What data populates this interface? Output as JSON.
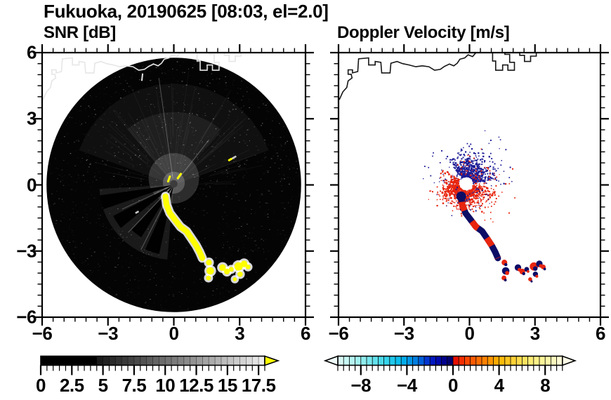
{
  "figure": {
    "title": "Fukuoka, 20190625 [08:03, el=2.0]"
  },
  "panels": {
    "left": {
      "title": "SNR [dB]"
    },
    "right": {
      "title": "Doppler Velocity [m/s]"
    }
  },
  "coastline": {
    "color_left": "#e6e6e6",
    "color_right": "#161616",
    "main": [
      [
        -6.2,
        3.62
      ],
      [
        -5.95,
        3.9
      ],
      [
        -5.8,
        4.22
      ],
      [
        -5.62,
        4.42
      ],
      [
        -5.56,
        4.72
      ],
      [
        -5.38,
        4.85
      ],
      [
        -5.42,
        5.02
      ],
      [
        -5.56,
        5.02
      ],
      [
        -5.56,
        5.22
      ],
      [
        -5.36,
        5.22
      ],
      [
        -5.36,
        5.08
      ],
      [
        -5.12,
        5.14
      ],
      [
        -5.08,
        5.72
      ],
      [
        -4.62,
        5.76
      ],
      [
        -4.62,
        5.44
      ],
      [
        -4.32,
        5.44
      ],
      [
        -4.32,
        5.6
      ],
      [
        -4.06,
        5.56
      ],
      [
        -4.02,
        5.08
      ],
      [
        -3.64,
        5.08
      ],
      [
        -3.6,
        5.52
      ],
      [
        -3.32,
        5.6
      ],
      [
        -3.06,
        5.5
      ],
      [
        -2.76,
        5.44
      ],
      [
        -2.46,
        5.36
      ],
      [
        -2.16,
        5.4
      ],
      [
        -1.86,
        5.36
      ],
      [
        -1.6,
        5.2
      ],
      [
        -1.34,
        5.24
      ],
      [
        -1.14,
        5.38
      ],
      [
        -0.92,
        5.48
      ],
      [
        -0.72,
        5.4
      ],
      [
        -0.56,
        5.52
      ],
      [
        -0.44,
        5.7
      ],
      [
        -0.22,
        5.76
      ],
      [
        -0.06,
        5.9
      ],
      [
        0.14,
        5.82
      ],
      [
        0.28,
        5.98
      ],
      [
        0.5,
        6.08
      ]
    ],
    "port1": [
      [
        1.06,
        6.1
      ],
      [
        1.06,
        5.62
      ],
      [
        1.2,
        5.62
      ],
      [
        1.2,
        5.2
      ],
      [
        1.52,
        5.2
      ],
      [
        1.52,
        5.44
      ],
      [
        1.76,
        5.44
      ],
      [
        1.76,
        5.2
      ],
      [
        2.06,
        5.2
      ],
      [
        2.06,
        5.56
      ],
      [
        1.84,
        5.56
      ],
      [
        1.84,
        5.92
      ],
      [
        1.62,
        5.92
      ],
      [
        1.62,
        6.1
      ]
    ],
    "port2": [
      [
        2.3,
        6.1
      ],
      [
        2.3,
        5.88
      ],
      [
        2.52,
        5.88
      ],
      [
        2.52,
        5.6
      ],
      [
        2.8,
        5.6
      ],
      [
        2.8,
        5.84
      ],
      [
        3.06,
        5.84
      ],
      [
        3.06,
        6.02
      ],
      [
        3.3,
        6.02
      ],
      [
        3.3,
        6.1
      ]
    ],
    "dash": [
      [
        -1.42,
        5.05
      ],
      [
        -1.46,
        4.72
      ]
    ]
  },
  "plume": {
    "arc": [
      [
        -0.38,
        -0.52
      ],
      [
        -0.33,
        -0.9
      ],
      [
        -0.18,
        -1.28
      ],
      [
        0.05,
        -1.58
      ],
      [
        0.3,
        -1.9
      ],
      [
        0.58,
        -2.1
      ],
      [
        0.82,
        -2.45
      ],
      [
        1.02,
        -2.75
      ],
      [
        1.18,
        -3.05
      ],
      [
        1.3,
        -3.32
      ]
    ],
    "blobs": [
      [
        1.6,
        -3.52,
        0.13
      ],
      [
        1.66,
        -3.9,
        0.17
      ],
      [
        1.58,
        -4.22,
        0.11
      ],
      [
        2.22,
        -3.75,
        0.15
      ],
      [
        2.42,
        -3.93,
        0.13
      ],
      [
        2.62,
        -3.83,
        0.11
      ],
      [
        2.95,
        -3.7,
        0.19
      ],
      [
        3.2,
        -3.58,
        0.15
      ],
      [
        3.38,
        -3.72,
        0.11
      ],
      [
        3.02,
        -4.05,
        0.12
      ],
      [
        2.78,
        -4.28,
        0.09
      ]
    ],
    "sparks": [
      [
        -0.26,
        0.16,
        -0.18,
        0.38
      ],
      [
        0.18,
        0.3,
        0.32,
        0.5
      ],
      [
        2.52,
        1.12,
        2.62,
        1.18
      ]
    ],
    "gray_streaks": [
      [
        2.6,
        1.16,
        2.84,
        1.3
      ],
      [
        -1.75,
        -1.28,
        -1.6,
        -1.2
      ]
    ]
  },
  "chart_data": [
    {
      "id": "snr",
      "type": "heatmap",
      "title": "SNR [dB]",
      "xlabel": "",
      "ylabel": "",
      "xlim": [
        -6,
        6
      ],
      "ylim": [
        -6,
        6
      ],
      "xticks": [
        -6,
        -3,
        0,
        3,
        6
      ],
      "yticks": [
        -6,
        -3,
        0,
        3,
        6
      ],
      "minor_step": 0.5,
      "scan": {
        "center": [
          0,
          0
        ],
        "radius": 5.8,
        "fill": "#040404"
      },
      "haze_sectors": [
        {
          "a1": 20,
          "a2": 160,
          "r": 4.6,
          "opacity": 0.05
        },
        {
          "a1": 50,
          "a2": 130,
          "r": 3.3,
          "opacity": 0.065
        },
        {
          "a1": 183,
          "a2": 265,
          "r": 3.4,
          "opacity": 0.09
        }
      ],
      "shadow_wedges": [
        {
          "a1": 188,
          "a2": 199,
          "r": 3.4
        },
        {
          "a1": 207,
          "a2": 219,
          "r": 3.1
        },
        {
          "a1": 227,
          "a2": 238,
          "r": 2.8
        },
        {
          "a1": 246,
          "a2": 258,
          "r": 3.2
        }
      ],
      "ray_lines": [
        {
          "a": 98,
          "r1": 0.3,
          "r2": 4.9
        },
        {
          "a": 52,
          "r1": 0.3,
          "r2": 2.6
        },
        {
          "a": 226,
          "r1": 0.3,
          "r2": 3.0
        },
        {
          "a": 243,
          "r1": 0.3,
          "r2": 3.3
        },
        {
          "a": 205,
          "r1": 0.3,
          "r2": 2.6
        }
      ],
      "plume_color": "#ffff00",
      "plume_halo": "#ffffff",
      "colorbar": {
        "unit": "dB",
        "min": 0,
        "max": 18,
        "cell": 0.5,
        "tick_values": [
          0,
          2.5,
          5,
          7.5,
          10,
          12.5,
          15,
          17.5
        ],
        "tick_labels": [
          "0",
          "2.5",
          "5",
          "7.5",
          "10",
          "12.5",
          "15",
          "17.5"
        ],
        "ramp_start_value": 4.5,
        "ramp_start_color": "#161616",
        "ramp_end_color": "#f0f0f0",
        "under_color": "#000000",
        "over_color": "#ffff00"
      }
    },
    {
      "id": "doppler",
      "type": "scatter",
      "title": "Doppler Velocity [m/s]",
      "xlabel": "",
      "ylabel": "",
      "xlim": [
        -6,
        6
      ],
      "ylim": [
        -6,
        6
      ],
      "xticks": [
        -6,
        -3,
        0,
        3,
        6
      ],
      "yticks": [
        -6,
        -3,
        0,
        3,
        6
      ],
      "minor_step": 0.5,
      "scatter": {
        "origin": [
          -0.15,
          0.05
        ],
        "hole_radius": 0.3,
        "colors": {
          "blue": "#1b1b96",
          "red": "#e8250e",
          "navy": "#0d0d66"
        },
        "clusters": [
          {
            "name": "blue-fan",
            "color": "blue",
            "n": 520,
            "angle": [
              8,
              128
            ],
            "r0": 0.32,
            "spread": 0.55,
            "rmax": 2.5,
            "size": [
              1.4,
              2.4
            ]
          },
          {
            "name": "blue-sparse",
            "color": "blue",
            "n": 150,
            "angle": [
              -5,
              185
            ],
            "r0": 0.32,
            "spread": 1.0,
            "rmax": 2.6,
            "size": [
              1.2,
              2.0
            ]
          },
          {
            "name": "red-fan",
            "color": "red",
            "n": 500,
            "angle": [
              188,
              352
            ],
            "r0": 0.32,
            "spread": 0.5,
            "rmax": 2.2,
            "size": [
              1.4,
              2.4
            ]
          },
          {
            "name": "red-sparse",
            "color": "red",
            "n": 120,
            "angle": [
              170,
              380
            ],
            "r0": 0.32,
            "spread": 0.9,
            "rmax": 2.4,
            "size": [
              1.2,
              2.0
            ]
          },
          {
            "name": "red-west",
            "color": "red",
            "n": 130,
            "angle": [
              148,
              216
            ],
            "r0": 0.35,
            "spread": 0.45,
            "rmax": 1.4,
            "size": [
              1.6,
              2.6
            ]
          },
          {
            "name": "blue-in-red",
            "color": "blue",
            "n": 45,
            "angle": [
              200,
              340
            ],
            "r0": 0.4,
            "spread": 0.6,
            "rmax": 1.8,
            "size": [
              1.2,
              2.0
            ]
          },
          {
            "name": "red-in-blue",
            "color": "red",
            "n": 45,
            "angle": [
              20,
              120
            ],
            "r0": 0.4,
            "spread": 0.7,
            "rmax": 2.0,
            "size": [
              1.2,
              2.0
            ]
          }
        ],
        "start_wedge": [
          [
            -0.62,
            -0.3
          ],
          [
            -0.1,
            -0.5
          ],
          [
            -0.22,
            -0.82
          ],
          [
            -0.6,
            -0.62
          ]
        ]
      },
      "colorbar": {
        "unit": "m/s",
        "min": -10,
        "max": 9.5,
        "cell": 0.5,
        "tick_values": [
          -8,
          -4,
          0,
          4,
          8
        ],
        "tick_labels": [
          "−8",
          "−4",
          "0",
          "4",
          "8"
        ],
        "stops": [
          [
            -10,
            "#e2fbf7"
          ],
          [
            -8,
            "#9af0ee"
          ],
          [
            -6,
            "#40d8ec"
          ],
          [
            -4.5,
            "#00b8ec"
          ],
          [
            -3,
            "#0072e0"
          ],
          [
            -2,
            "#0020cc"
          ],
          [
            -1,
            "#0000a0"
          ],
          [
            -0.5,
            "#000078"
          ],
          [
            -0.01,
            "#000060"
          ],
          [
            0.01,
            "#e00000"
          ],
          [
            1,
            "#fa3c00"
          ],
          [
            2.5,
            "#ff7800"
          ],
          [
            4,
            "#ffb400"
          ],
          [
            5.5,
            "#ffd840"
          ],
          [
            7,
            "#fcf080"
          ],
          [
            8.5,
            "#fdf8b0"
          ],
          [
            9.5,
            "#fefce0"
          ]
        ],
        "under_color": "#eefcfa",
        "over_color": "#fefce8"
      }
    }
  ]
}
